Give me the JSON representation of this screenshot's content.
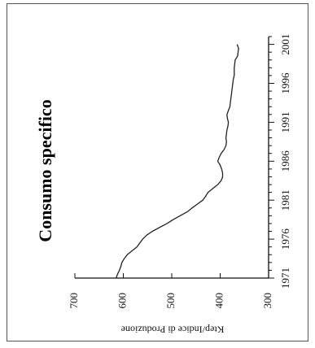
{
  "chart_data": {
    "type": "line",
    "title": "Consumo specifico",
    "xlabel": "",
    "ylabel": "Ktep/Indice di Produzione",
    "xlim": [
      1971,
      2002
    ],
    "ylim": [
      300,
      700
    ],
    "x_ticks": [
      "1971",
      "1976",
      "1981",
      "1986",
      "1991",
      "1996",
      "2001"
    ],
    "y_ticks": [
      "300",
      "400",
      "500",
      "600",
      "700"
    ],
    "grid": false,
    "orientation": "rotated 90° clockwise",
    "series": [
      {
        "color": "#222222",
        "x": [
          1971,
          1971.5,
          1972,
          1972.5,
          1973,
          1973.5,
          1974,
          1974.5,
          1975,
          1975.5,
          1976,
          1976.5,
          1977,
          1977.5,
          1978,
          1978.5,
          1979,
          1979.5,
          1980,
          1980.5,
          1981,
          1981.5,
          1982,
          1982.5,
          1983,
          1983.5,
          1984,
          1984.5,
          1985,
          1985.5,
          1986,
          1986.5,
          1987,
          1987.5,
          1988,
          1988.5,
          1989,
          1989.5,
          1990,
          1990.5,
          1991,
          1991.5,
          1992,
          1992.5,
          1993,
          1993.5,
          1994,
          1994.5,
          1995,
          1995.5,
          1996,
          1996.5,
          1997,
          1997.5,
          1998,
          1998.5,
          1999,
          1999.5,
          2000,
          2000.5,
          2001
        ],
        "y": [
          615,
          612,
          608,
          605,
          603,
          598,
          592,
          582,
          572,
          566,
          560,
          552,
          540,
          525,
          510,
          497,
          483,
          468,
          458,
          447,
          436,
          430,
          425,
          415,
          405,
          398,
          395,
          395,
          397,
          400,
          405,
          402,
          398,
          392,
          388,
          387,
          388,
          387,
          386,
          384,
          383,
          385,
          386,
          383,
          380,
          379,
          378,
          377,
          376,
          375,
          374,
          373,
          371,
          371,
          371,
          370,
          369,
          364,
          363,
          362,
          365
        ]
      }
    ]
  }
}
